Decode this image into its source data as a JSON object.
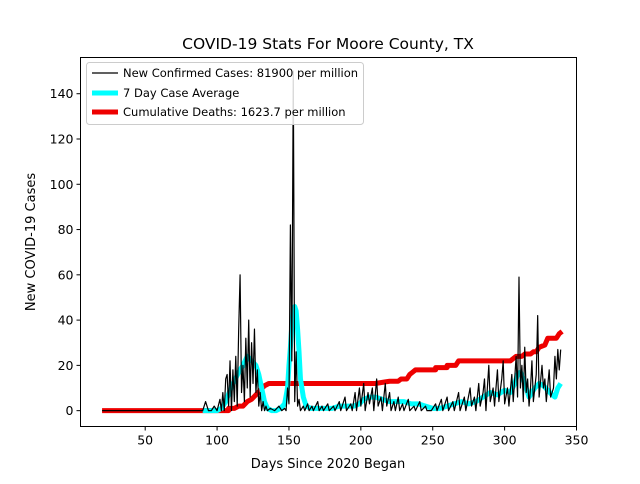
{
  "chart_data": {
    "type": "line",
    "title": "COVID-19 Stats For Moore County, TX",
    "xlabel": "Days Since 2020 Began",
    "ylabel": "New COVID-19 Cases",
    "xlim": [
      5,
      350
    ],
    "ylim": [
      -7,
      156
    ],
    "xticks": [
      50,
      100,
      150,
      200,
      250,
      300,
      350
    ],
    "yticks": [
      0,
      20,
      40,
      60,
      80,
      100,
      120,
      140
    ],
    "grid": false,
    "legend_position": "top-left",
    "series": [
      {
        "name": "New Confirmed Cases: 81900 per million",
        "color": "#000000",
        "style": "thin",
        "points": [
          [
            20,
            0
          ],
          [
            90,
            0
          ],
          [
            92,
            4
          ],
          [
            94,
            0
          ],
          [
            96,
            0
          ],
          [
            98,
            2
          ],
          [
            100,
            0
          ],
          [
            102,
            5
          ],
          [
            103,
            0
          ],
          [
            104,
            8
          ],
          [
            105,
            0
          ],
          [
            106,
            14
          ],
          [
            107,
            16
          ],
          [
            108,
            2
          ],
          [
            109,
            22
          ],
          [
            110,
            0
          ],
          [
            111,
            18
          ],
          [
            112,
            4
          ],
          [
            113,
            24
          ],
          [
            114,
            2
          ],
          [
            115,
            35
          ],
          [
            116,
            60
          ],
          [
            117,
            8
          ],
          [
            118,
            20
          ],
          [
            119,
            4
          ],
          [
            120,
            32
          ],
          [
            121,
            10
          ],
          [
            122,
            40
          ],
          [
            123,
            6
          ],
          [
            124,
            30
          ],
          [
            125,
            12
          ],
          [
            126,
            36
          ],
          [
            127,
            8
          ],
          [
            128,
            18
          ],
          [
            129,
            2
          ],
          [
            130,
            8
          ],
          [
            131,
            0
          ],
          [
            132,
            4
          ],
          [
            133,
            0
          ],
          [
            134,
            2
          ],
          [
            135,
            0
          ],
          [
            137,
            1
          ],
          [
            140,
            0
          ],
          [
            143,
            2
          ],
          [
            145,
            0
          ],
          [
            147,
            1
          ],
          [
            148,
            0
          ],
          [
            149,
            10
          ],
          [
            150,
            3
          ],
          [
            151,
            82
          ],
          [
            152,
            22
          ],
          [
            153,
            150
          ],
          [
            154,
            4
          ],
          [
            155,
            26
          ],
          [
            156,
            2
          ],
          [
            157,
            5
          ],
          [
            158,
            0
          ],
          [
            160,
            2
          ],
          [
            161,
            0
          ],
          [
            163,
            3
          ],
          [
            164,
            0
          ],
          [
            166,
            2
          ],
          [
            167,
            0
          ],
          [
            170,
            4
          ],
          [
            171,
            0
          ],
          [
            173,
            2
          ],
          [
            174,
            0
          ],
          [
            177,
            3
          ],
          [
            178,
            0
          ],
          [
            181,
            2
          ],
          [
            182,
            0
          ],
          [
            185,
            4
          ],
          [
            186,
            0
          ],
          [
            189,
            6
          ],
          [
            190,
            0
          ],
          [
            193,
            3
          ],
          [
            194,
            0
          ],
          [
            196,
            8
          ],
          [
            197,
            0
          ],
          [
            199,
            10
          ],
          [
            200,
            2
          ],
          [
            202,
            12
          ],
          [
            203,
            0
          ],
          [
            205,
            8
          ],
          [
            206,
            3
          ],
          [
            208,
            10
          ],
          [
            209,
            0
          ],
          [
            211,
            14
          ],
          [
            212,
            2
          ],
          [
            214,
            6
          ],
          [
            215,
            0
          ],
          [
            217,
            12
          ],
          [
            218,
            2
          ],
          [
            220,
            8
          ],
          [
            221,
            0
          ],
          [
            223,
            4
          ],
          [
            224,
            0
          ],
          [
            226,
            6
          ],
          [
            227,
            0
          ],
          [
            229,
            3
          ],
          [
            230,
            0
          ],
          [
            233,
            5
          ],
          [
            234,
            0
          ],
          [
            237,
            2
          ],
          [
            238,
            0
          ],
          [
            241,
            4
          ],
          [
            242,
            0
          ],
          [
            245,
            2
          ],
          [
            246,
            0
          ],
          [
            249,
            0
          ],
          [
            252,
            3
          ],
          [
            253,
            0
          ],
          [
            256,
            5
          ],
          [
            257,
            0
          ],
          [
            260,
            6
          ],
          [
            261,
            0
          ],
          [
            264,
            4
          ],
          [
            265,
            0
          ],
          [
            268,
            8
          ],
          [
            269,
            0
          ],
          [
            272,
            6
          ],
          [
            273,
            0
          ],
          [
            276,
            10
          ],
          [
            277,
            2
          ],
          [
            279,
            6
          ],
          [
            280,
            0
          ],
          [
            282,
            12
          ],
          [
            283,
            2
          ],
          [
            285,
            8
          ],
          [
            286,
            14
          ],
          [
            287,
            0
          ],
          [
            289,
            20
          ],
          [
            290,
            4
          ],
          [
            292,
            10
          ],
          [
            293,
            2
          ],
          [
            295,
            18
          ],
          [
            296,
            4
          ],
          [
            298,
            14
          ],
          [
            299,
            22
          ],
          [
            300,
            3
          ],
          [
            302,
            10
          ],
          [
            303,
            2
          ],
          [
            305,
            16
          ],
          [
            306,
            4
          ],
          [
            308,
            24
          ],
          [
            309,
            6
          ],
          [
            310,
            59
          ],
          [
            311,
            10
          ],
          [
            312,
            20
          ],
          [
            313,
            4
          ],
          [
            314,
            28
          ],
          [
            315,
            8
          ],
          [
            316,
            14
          ],
          [
            317,
            2
          ],
          [
            318,
            10
          ],
          [
            319,
            22
          ],
          [
            320,
            4
          ],
          [
            322,
            16
          ],
          [
            323,
            42
          ],
          [
            324,
            6
          ],
          [
            326,
            20
          ],
          [
            327,
            10
          ],
          [
            328,
            14
          ],
          [
            329,
            4
          ],
          [
            331,
            18
          ],
          [
            332,
            6
          ],
          [
            334,
            10
          ],
          [
            335,
            24
          ],
          [
            336,
            14
          ],
          [
            337,
            27
          ],
          [
            338,
            18
          ],
          [
            339,
            27
          ]
        ]
      },
      {
        "name": "7 Day Case Average",
        "color": "#00ffff",
        "style": "thick",
        "points": [
          [
            90,
            0
          ],
          [
            100,
            0
          ],
          [
            103,
            1
          ],
          [
            106,
            4
          ],
          [
            109,
            9
          ],
          [
            112,
            13
          ],
          [
            115,
            17
          ],
          [
            118,
            20
          ],
          [
            121,
            24
          ],
          [
            124,
            22
          ],
          [
            127,
            20
          ],
          [
            129,
            16
          ],
          [
            131,
            10
          ],
          [
            133,
            4
          ],
          [
            135,
            1
          ],
          [
            138,
            0
          ],
          [
            141,
            0
          ],
          [
            144,
            1
          ],
          [
            147,
            3
          ],
          [
            149,
            10
          ],
          [
            150,
            20
          ],
          [
            151,
            28
          ],
          [
            152,
            38
          ],
          [
            153,
            45
          ],
          [
            154,
            46
          ],
          [
            155,
            44
          ],
          [
            156,
            36
          ],
          [
            157,
            26
          ],
          [
            158,
            14
          ],
          [
            160,
            6
          ],
          [
            162,
            2
          ],
          [
            165,
            1
          ],
          [
            170,
            1
          ],
          [
            175,
            1
          ],
          [
            180,
            1
          ],
          [
            185,
            2
          ],
          [
            190,
            2
          ],
          [
            195,
            2
          ],
          [
            199,
            3
          ],
          [
            202,
            5
          ],
          [
            206,
            6
          ],
          [
            210,
            6
          ],
          [
            215,
            5
          ],
          [
            220,
            4
          ],
          [
            225,
            4
          ],
          [
            230,
            4
          ],
          [
            235,
            3
          ],
          [
            240,
            3
          ],
          [
            245,
            2
          ],
          [
            250,
            1
          ],
          [
            255,
            1
          ],
          [
            260,
            2
          ],
          [
            265,
            3
          ],
          [
            270,
            4
          ],
          [
            275,
            3
          ],
          [
            280,
            4
          ],
          [
            285,
            6
          ],
          [
            290,
            8
          ],
          [
            295,
            7
          ],
          [
            300,
            9
          ],
          [
            304,
            8
          ],
          [
            307,
            12
          ],
          [
            309,
            16
          ],
          [
            311,
            17
          ],
          [
            313,
            14
          ],
          [
            315,
            10
          ],
          [
            317,
            6
          ],
          [
            319,
            8
          ],
          [
            321,
            10
          ],
          [
            324,
            12
          ],
          [
            327,
            11
          ],
          [
            330,
            9
          ],
          [
            333,
            7
          ],
          [
            335,
            6
          ],
          [
            337,
            10
          ],
          [
            339,
            12
          ]
        ]
      },
      {
        "name": "Cumulative Deaths: 1623.7 per million",
        "color": "#ee0000",
        "style": "thick",
        "points": [
          [
            20,
            0
          ],
          [
            108,
            0
          ],
          [
            108,
            1
          ],
          [
            112,
            1
          ],
          [
            115,
            2
          ],
          [
            118,
            2
          ],
          [
            121,
            4
          ],
          [
            124,
            5
          ],
          [
            127,
            7
          ],
          [
            130,
            9
          ],
          [
            133,
            11
          ],
          [
            136,
            12
          ],
          [
            200,
            12
          ],
          [
            210,
            12
          ],
          [
            220,
            13
          ],
          [
            226,
            13
          ],
          [
            228,
            14
          ],
          [
            232,
            14
          ],
          [
            234,
            16
          ],
          [
            236,
            17
          ],
          [
            238,
            18
          ],
          [
            252,
            18
          ],
          [
            252,
            19
          ],
          [
            260,
            19
          ],
          [
            260,
            20
          ],
          [
            266,
            20
          ],
          [
            268,
            22
          ],
          [
            304,
            22
          ],
          [
            306,
            23
          ],
          [
            308,
            24
          ],
          [
            312,
            24
          ],
          [
            314,
            25
          ],
          [
            318,
            25
          ],
          [
            320,
            26
          ],
          [
            322,
            26
          ],
          [
            324,
            28
          ],
          [
            328,
            29
          ],
          [
            330,
            32
          ],
          [
            336,
            32
          ],
          [
            338,
            34
          ],
          [
            340,
            35
          ]
        ]
      }
    ]
  }
}
